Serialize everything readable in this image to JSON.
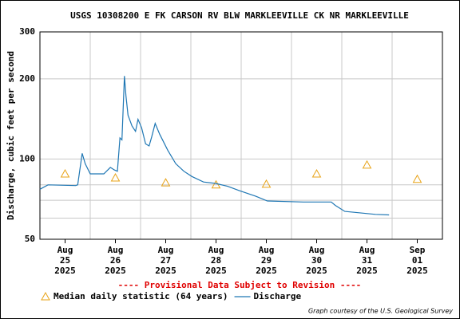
{
  "chart_data": {
    "type": "line",
    "title": "USGS 10308200 E FK CARSON RV BLW MARKLEEVILLE CK NR MARKLEEVILLE",
    "y_label": "Discharge, cubic feet per second",
    "log_y": true,
    "ylim": [
      50,
      300
    ],
    "yticks": [
      50,
      100,
      200,
      300
    ],
    "y_minor_grid": [
      60,
      70,
      80
    ],
    "xlim": [
      0,
      8
    ],
    "x_grid": [
      0,
      1,
      2,
      3,
      4,
      5,
      6,
      7,
      8
    ],
    "xticks": [
      {
        "value": 0.5,
        "label": "Aug\n25\n2025"
      },
      {
        "value": 1.5,
        "label": "Aug\n26\n2025"
      },
      {
        "value": 2.5,
        "label": "Aug\n27\n2025"
      },
      {
        "value": 3.5,
        "label": "Aug\n28\n2025"
      },
      {
        "value": 4.5,
        "label": "Aug\n29\n2025"
      },
      {
        "value": 5.5,
        "label": "Aug\n30\n2025"
      },
      {
        "value": 6.5,
        "label": "Aug\n31\n2025"
      },
      {
        "value": 7.5,
        "label": "Sep\n01\n2025"
      }
    ],
    "annotation": "---- Provisional Data Subject to Revision ----",
    "credit": "Graph courtesy of the U.S. Geological Survey",
    "series": [
      {
        "name": "Median daily statistic (64 years)",
        "color": "#e8a317",
        "marker": "triangle",
        "x": [
          0.5,
          1.5,
          2.5,
          3.5,
          4.5,
          5.5,
          6.5,
          7.5
        ],
        "values": [
          88,
          85,
          81.5,
          80,
          80.5,
          88,
          95,
          84
        ]
      },
      {
        "name": "Discharge",
        "color": "#1f77b4",
        "marker": "none",
        "x": [
          0,
          0.16,
          0.71,
          0.75,
          0.84,
          0.9,
          1.0,
          1.11,
          1.27,
          1.4,
          1.48,
          1.54,
          1.59,
          1.63,
          1.68,
          1.71,
          1.75,
          1.83,
          1.9,
          1.95,
          2.02,
          2.1,
          2.17,
          2.22,
          2.29,
          2.38,
          2.54,
          2.7,
          2.86,
          3.02,
          3.25,
          3.49,
          3.73,
          3.97,
          4.29,
          4.52,
          5.24,
          5.79,
          5.87,
          6.06,
          6.67,
          6.94
        ],
        "values": [
          77,
          80,
          79.5,
          80,
          105,
          96,
          88,
          88,
          88,
          93,
          91,
          90,
          120,
          118,
          205,
          173,
          146,
          133,
          127,
          141,
          131,
          114,
          112,
          121,
          136,
          124,
          108,
          96,
          90,
          86,
          82,
          81,
          79,
          76,
          72.5,
          69.6,
          69,
          69,
          67,
          63.6,
          62,
          61.7
        ]
      }
    ]
  }
}
